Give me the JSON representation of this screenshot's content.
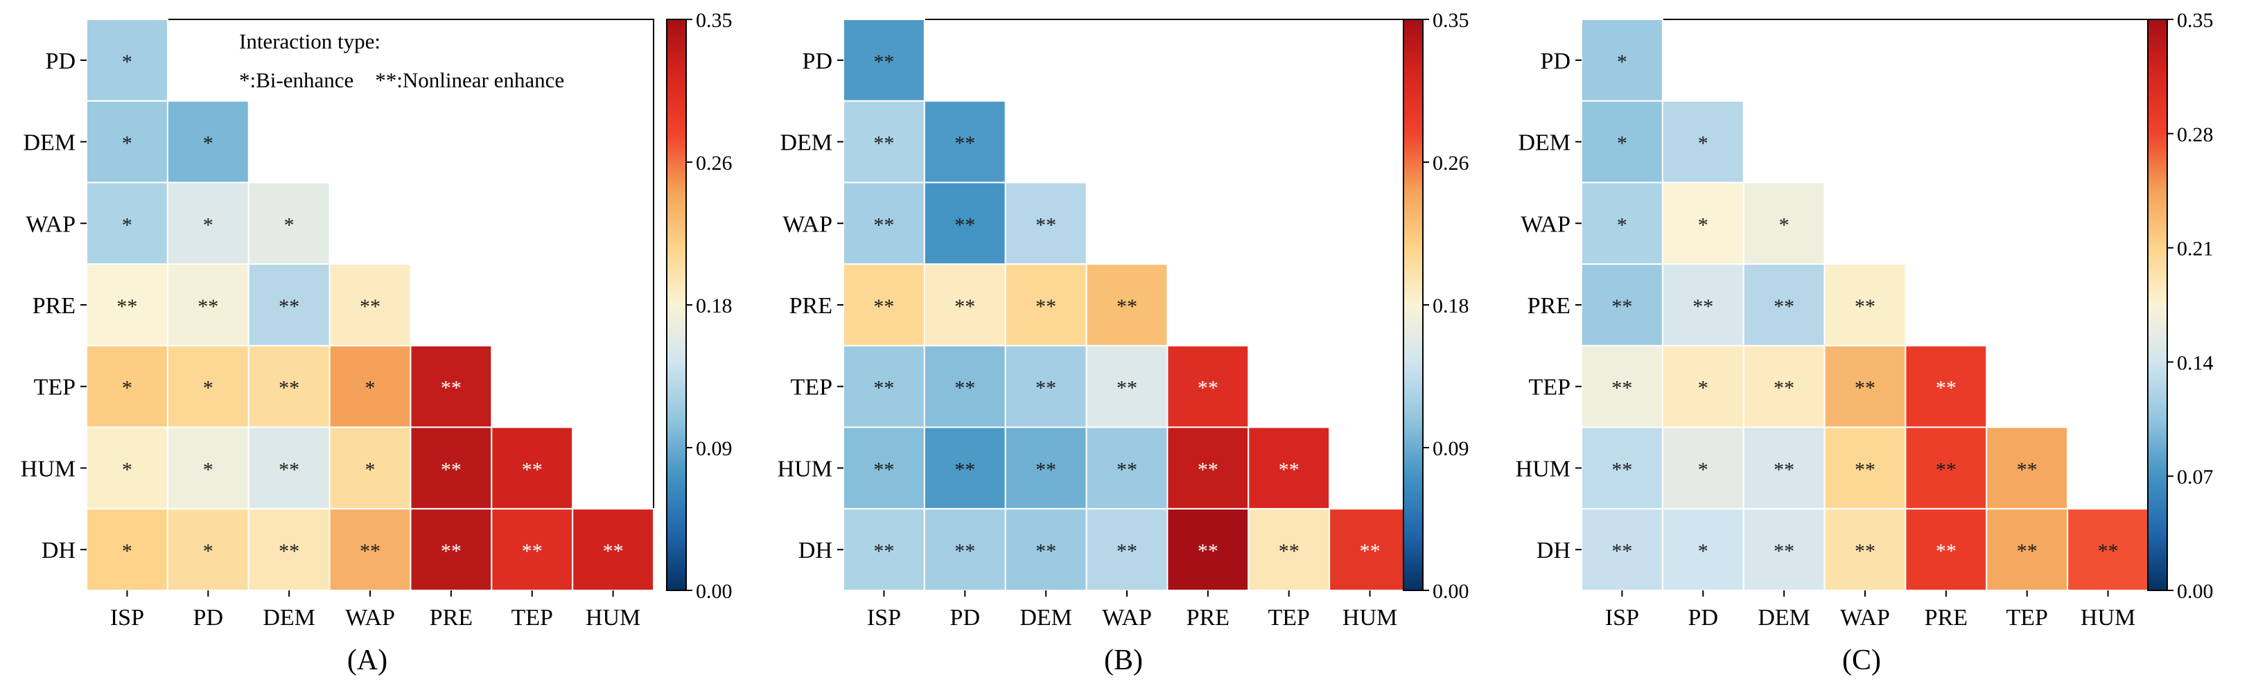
{
  "chart_data": [
    {
      "type": "heatmap",
      "panel_label": "(A)",
      "row_labels": [
        "PD",
        "DEM",
        "WAP",
        "PRE",
        "TEP",
        "HUM",
        "DH"
      ],
      "col_labels": [
        "ISP",
        "PD",
        "DEM",
        "WAP",
        "PRE",
        "TEP",
        "HUM"
      ],
      "values": [
        [
          0.115
        ],
        [
          0.11,
          0.095
        ],
        [
          0.12,
          0.15,
          0.155
        ],
        [
          0.175,
          0.17,
          0.125,
          0.185
        ],
        [
          0.215,
          0.205,
          0.2,
          0.245,
          0.33
        ],
        [
          0.18,
          0.165,
          0.15,
          0.2,
          0.335,
          0.32
        ],
        [
          0.21,
          0.2,
          0.19,
          0.235,
          0.335,
          0.305,
          0.32
        ]
      ],
      "marks": [
        [
          "*"
        ],
        [
          "*",
          "*"
        ],
        [
          "*",
          "*",
          "*"
        ],
        [
          "**",
          "**",
          "**",
          "**"
        ],
        [
          "*",
          "*",
          "**",
          "*",
          "**"
        ],
        [
          "*",
          "*",
          "**",
          "*",
          "**",
          "**"
        ],
        [
          "*",
          "*",
          "**",
          "**",
          "**",
          "**",
          "**"
        ]
      ],
      "legend": {
        "title": "Interaction type:",
        "line": "*:Bi-enhance    **:Nonlinear enhance"
      },
      "colorbar": {
        "vmin": 0.0,
        "vmax": 0.35,
        "ticks": [
          "0.00",
          "0.09",
          "0.18",
          "0.26",
          "0.35"
        ]
      }
    },
    {
      "type": "heatmap",
      "panel_label": "(B)",
      "row_labels": [
        "PD",
        "DEM",
        "WAP",
        "PRE",
        "TEP",
        "HUM",
        "DH"
      ],
      "col_labels": [
        "ISP",
        "PD",
        "DEM",
        "WAP",
        "PRE",
        "TEP",
        "HUM"
      ],
      "values": [
        [
          0.075
        ],
        [
          0.12,
          0.075
        ],
        [
          0.115,
          0.07,
          0.125
        ],
        [
          0.205,
          0.185,
          0.205,
          0.225
        ],
        [
          0.11,
          0.1,
          0.115,
          0.15,
          0.305
        ],
        [
          0.1,
          0.075,
          0.09,
          0.11,
          0.33,
          0.315
        ],
        [
          0.12,
          0.115,
          0.11,
          0.125,
          0.35,
          0.19,
          0.295
        ]
      ],
      "marks": [
        [
          "**"
        ],
        [
          "**",
          "**"
        ],
        [
          "**",
          "**",
          "**"
        ],
        [
          "**",
          "**",
          "**",
          "**"
        ],
        [
          "**",
          "**",
          "**",
          "**",
          "**"
        ],
        [
          "**",
          "**",
          "**",
          "**",
          "**",
          "**"
        ],
        [
          "**",
          "**",
          "**",
          "**",
          "**",
          "**",
          "**"
        ]
      ],
      "colorbar": {
        "vmin": 0.0,
        "vmax": 0.35,
        "ticks": [
          "0.00",
          "0.09",
          "0.18",
          "0.26",
          "0.35"
        ]
      }
    },
    {
      "type": "heatmap",
      "panel_label": "(C)",
      "row_labels": [
        "PD",
        "DEM",
        "WAP",
        "PRE",
        "TEP",
        "HUM",
        "DH"
      ],
      "col_labels": [
        "ISP",
        "PD",
        "DEM",
        "WAP",
        "PRE",
        "TEP",
        "HUM"
      ],
      "values": [
        [
          0.11
        ],
        [
          0.105,
          0.125
        ],
        [
          0.12,
          0.175,
          0.165
        ],
        [
          0.11,
          0.145,
          0.125,
          0.18
        ],
        [
          0.165,
          0.185,
          0.185,
          0.23,
          0.29
        ],
        [
          0.13,
          0.155,
          0.145,
          0.205,
          0.285,
          0.24
        ],
        [
          0.135,
          0.14,
          0.145,
          0.195,
          0.29,
          0.24,
          0.275
        ]
      ],
      "marks": [
        [
          "*"
        ],
        [
          "*",
          "*"
        ],
        [
          "*",
          "*",
          "*"
        ],
        [
          "**",
          "**",
          "**",
          "**"
        ],
        [
          "**",
          "*",
          "**",
          "**",
          "**"
        ],
        [
          "**",
          "*",
          "**",
          "**",
          "**",
          "**"
        ],
        [
          "**",
          "*",
          "**",
          "**",
          "**",
          "**",
          "**"
        ]
      ],
      "colorbar": {
        "vmin": 0.0,
        "vmax": 0.35,
        "ticks": [
          "0.00",
          "0.07",
          "0.14",
          "0.21",
          "0.28",
          "0.35"
        ]
      }
    }
  ],
  "colormap": [
    "#053061",
    "#2166ac",
    "#4393c3",
    "#92c5de",
    "#d1e5f0",
    "#fbf3d5",
    "#fdd48a",
    "#f4a259",
    "#f0432c",
    "#d7261f",
    "#a50f15"
  ]
}
